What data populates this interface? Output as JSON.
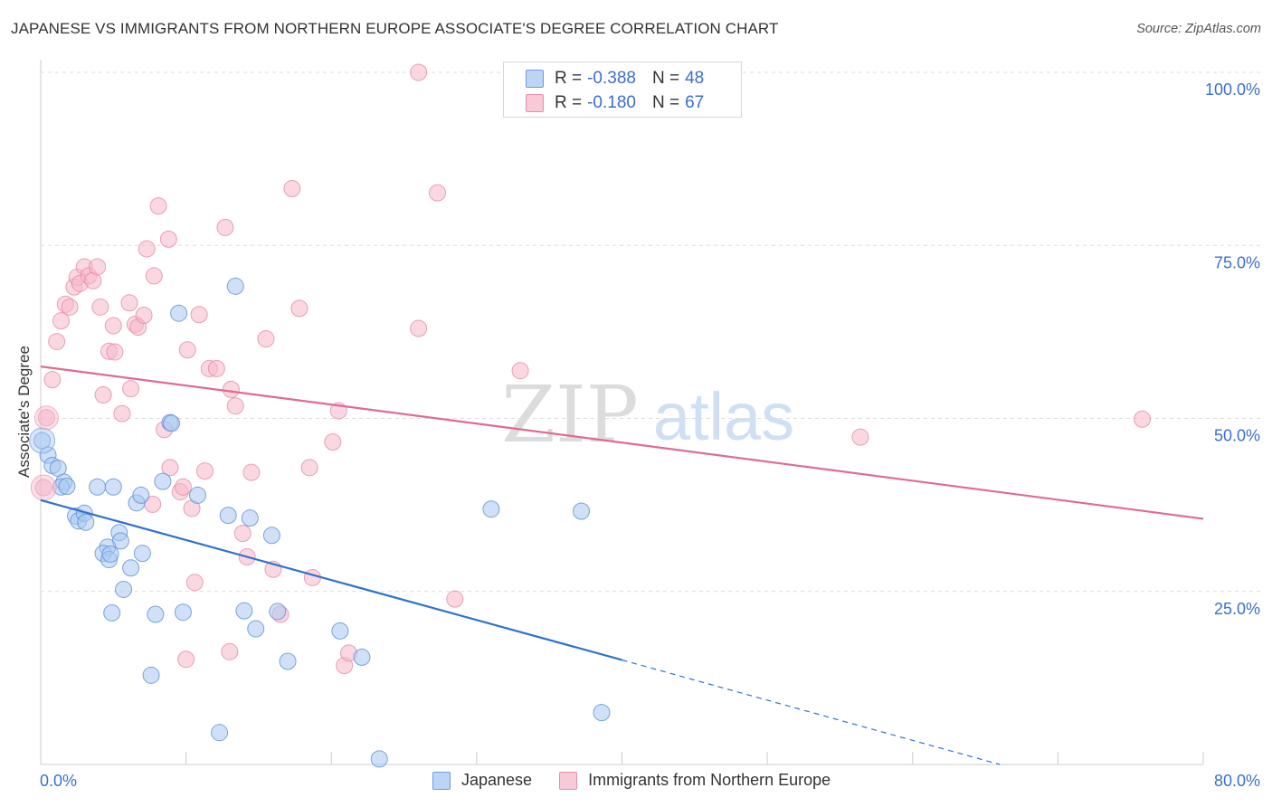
{
  "header": {
    "title": "JAPANESE VS IMMIGRANTS FROM NORTHERN EUROPE ASSOCIATE'S DEGREE CORRELATION CHART",
    "source": "Source: ZipAtlas.com"
  },
  "legend": {
    "rows": [
      {
        "r_label": "R =",
        "r_value": "-0.388",
        "n_label": "N =",
        "n_value": "48"
      },
      {
        "r_label": "R =",
        "r_value": "-0.180",
        "n_label": "N =",
        "n_value": "67"
      }
    ]
  },
  "bottom_legend": {
    "items": [
      {
        "label": "Japanese"
      },
      {
        "label": "Immigrants from Northern Europe"
      }
    ]
  },
  "watermark": {
    "zip": "ZIP",
    "atlas": "atlas"
  },
  "colors": {
    "blue_fill": "#a9c8f0",
    "blue_stroke": "#5b8fd8",
    "blue_line": "#2f72d0",
    "pink_fill": "#f5b8cb",
    "pink_stroke": "#e68aa6",
    "pink_line": "#e06a93",
    "axis_text": "#3a6fd0",
    "grid": "#dcdcdc"
  },
  "chart_data": {
    "type": "scatter",
    "title": "JAPANESE VS IMMIGRANTS FROM NORTHERN EUROPE ASSOCIATE'S DEGREE CORRELATION CHART",
    "xlabel": "",
    "ylabel": "Associate's Degree",
    "xlim": [
      0,
      80
    ],
    "ylim": [
      0,
      100
    ],
    "x_tick_labels": [
      "0.0%",
      "80.0%"
    ],
    "y_tick_values": [
      25,
      50,
      75,
      100
    ],
    "y_tick_labels": [
      "25.0%",
      "50.0%",
      "75.0%",
      "100.0%"
    ],
    "grid": "horizontal dashed",
    "legend_position": "top-center",
    "series": [
      {
        "name": "Japanese",
        "color": "#5b8fd8",
        "R": -0.388,
        "N": 48,
        "trend": {
          "x0": 0,
          "y0": 38.2,
          "x1": 40,
          "y1": 15.1,
          "dashed_to": [
            66,
            0
          ]
        },
        "points": [
          [
            0.1,
            46.8
          ],
          [
            0.5,
            44.7
          ],
          [
            0.8,
            43.2
          ],
          [
            1.2,
            42.8
          ],
          [
            1.6,
            40.8
          ],
          [
            1.4,
            40.1
          ],
          [
            1.8,
            40.2
          ],
          [
            3.9,
            40.1
          ],
          [
            5.0,
            40.1
          ],
          [
            2.4,
            35.9
          ],
          [
            2.6,
            35.2
          ],
          [
            3.0,
            36.3
          ],
          [
            3.1,
            35.0
          ],
          [
            5.4,
            33.5
          ],
          [
            5.5,
            32.3
          ],
          [
            4.6,
            31.4
          ],
          [
            4.3,
            30.5
          ],
          [
            4.7,
            29.6
          ],
          [
            4.8,
            30.4
          ],
          [
            7.0,
            30.5
          ],
          [
            6.2,
            28.4
          ],
          [
            5.7,
            25.3
          ],
          [
            4.9,
            21.9
          ],
          [
            7.9,
            21.7
          ],
          [
            9.8,
            22.0
          ],
          [
            6.6,
            37.8
          ],
          [
            6.9,
            38.9
          ],
          [
            8.4,
            40.9
          ],
          [
            8.9,
            49.4
          ],
          [
            9.0,
            49.3
          ],
          [
            9.5,
            65.2
          ],
          [
            10.8,
            38.9
          ],
          [
            12.9,
            36.0
          ],
          [
            13.4,
            69.1
          ],
          [
            14.4,
            35.6
          ],
          [
            15.9,
            33.1
          ],
          [
            14.0,
            22.2
          ],
          [
            14.8,
            19.6
          ],
          [
            16.3,
            22.1
          ],
          [
            17.0,
            14.9
          ],
          [
            20.6,
            19.3
          ],
          [
            22.1,
            15.5
          ],
          [
            7.6,
            12.9
          ],
          [
            12.3,
            4.6
          ],
          [
            23.3,
            0.8
          ],
          [
            31.0,
            36.9
          ],
          [
            37.2,
            36.6
          ],
          [
            38.6,
            7.5
          ]
        ]
      },
      {
        "name": "Immigrants from Northern Europe",
        "color": "#e68aa6",
        "R": -0.18,
        "N": 67,
        "trend": {
          "x0": 0,
          "y0": 57.5,
          "x1": 80,
          "y1": 35.5
        },
        "points": [
          [
            0.2,
            40.0
          ],
          [
            0.4,
            50.1
          ],
          [
            0.8,
            55.6
          ],
          [
            1.1,
            61.1
          ],
          [
            1.4,
            64.1
          ],
          [
            1.7,
            66.5
          ],
          [
            2.0,
            66.1
          ],
          [
            2.3,
            69.0
          ],
          [
            2.5,
            70.4
          ],
          [
            2.7,
            69.5
          ],
          [
            3.0,
            71.9
          ],
          [
            3.3,
            70.6
          ],
          [
            3.6,
            69.9
          ],
          [
            3.9,
            71.9
          ],
          [
            4.1,
            66.1
          ],
          [
            4.3,
            53.4
          ],
          [
            4.7,
            59.7
          ],
          [
            5.0,
            63.4
          ],
          [
            5.1,
            59.6
          ],
          [
            5.6,
            50.7
          ],
          [
            6.1,
            66.7
          ],
          [
            6.2,
            54.3
          ],
          [
            6.5,
            63.6
          ],
          [
            6.7,
            63.2
          ],
          [
            7.1,
            64.9
          ],
          [
            7.3,
            74.5
          ],
          [
            7.7,
            37.6
          ],
          [
            7.8,
            70.6
          ],
          [
            8.1,
            80.7
          ],
          [
            8.5,
            48.4
          ],
          [
            8.8,
            75.9
          ],
          [
            8.9,
            42.9
          ],
          [
            9.6,
            39.4
          ],
          [
            9.8,
            40.1
          ],
          [
            10.1,
            59.9
          ],
          [
            10.4,
            37.0
          ],
          [
            10.6,
            26.3
          ],
          [
            10.9,
            65.0
          ],
          [
            11.3,
            42.4
          ],
          [
            11.6,
            57.2
          ],
          [
            12.1,
            57.2
          ],
          [
            12.7,
            77.6
          ],
          [
            13.1,
            54.2
          ],
          [
            13.4,
            51.8
          ],
          [
            13.9,
            33.4
          ],
          [
            14.2,
            30.0
          ],
          [
            14.5,
            42.2
          ],
          [
            15.5,
            61.5
          ],
          [
            16.0,
            28.2
          ],
          [
            16.5,
            21.7
          ],
          [
            17.3,
            83.2
          ],
          [
            17.8,
            65.9
          ],
          [
            18.5,
            42.9
          ],
          [
            18.7,
            27.0
          ],
          [
            20.1,
            46.6
          ],
          [
            20.5,
            51.1
          ],
          [
            20.9,
            14.3
          ],
          [
            21.2,
            16.1
          ],
          [
            10.0,
            15.2
          ],
          [
            13.0,
            16.3
          ],
          [
            26.0,
            100.0
          ],
          [
            26.0,
            63.0
          ],
          [
            27.3,
            82.6
          ],
          [
            28.5,
            23.9
          ],
          [
            33.0,
            56.9
          ],
          [
            56.4,
            47.3
          ],
          [
            75.8,
            49.9
          ]
        ]
      }
    ]
  }
}
